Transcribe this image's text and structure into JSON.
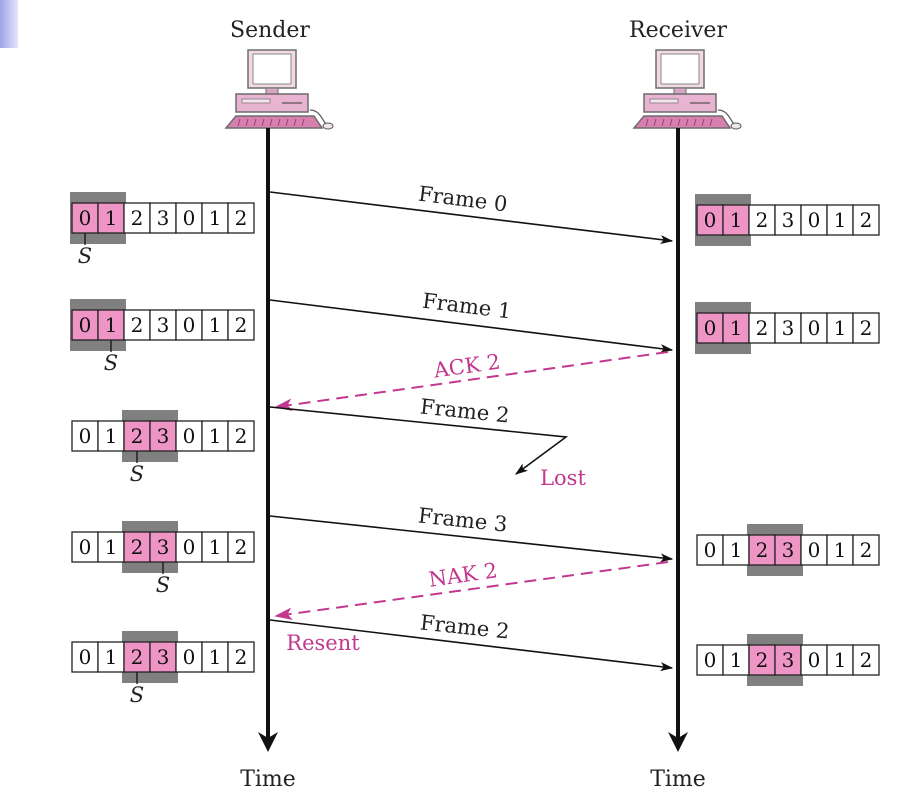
{
  "colors": {
    "window_fill": "#ee95c6",
    "window_frame": "#808080",
    "control_arrow": "#c2388f",
    "line": "#111111",
    "accent_bar": "#a6aaea"
  },
  "actors": {
    "sender": {
      "label": "Sender",
      "time_label": "Time",
      "icon": "computer-icon"
    },
    "receiver": {
      "label": "Receiver",
      "time_label": "Time",
      "icon": "computer-icon"
    }
  },
  "messages": [
    {
      "id": "frame0",
      "label": "Frame 0",
      "direction": "sender-to-receiver",
      "kind": "data"
    },
    {
      "id": "frame1",
      "label": "Frame 1",
      "direction": "sender-to-receiver",
      "kind": "data"
    },
    {
      "id": "ack2",
      "label": "ACK 2",
      "direction": "receiver-to-sender",
      "kind": "control"
    },
    {
      "id": "frame2",
      "label": "Frame 2",
      "direction": "sender-to-receiver",
      "kind": "data",
      "lost": true,
      "lost_label": "Lost"
    },
    {
      "id": "frame3",
      "label": "Frame 3",
      "direction": "sender-to-receiver",
      "kind": "data"
    },
    {
      "id": "nak2",
      "label": "NAK 2",
      "direction": "receiver-to-sender",
      "kind": "control"
    },
    {
      "id": "frame2b",
      "label": "Frame 2",
      "direction": "sender-to-receiver",
      "kind": "data",
      "note": "Resent"
    }
  ],
  "sequence": [
    "0",
    "1",
    "2",
    "3",
    "0",
    "1",
    "2"
  ],
  "sender_windows": [
    {
      "window_start": 0,
      "window_size": 2,
      "pointer_label": "S",
      "pointer_index": 0
    },
    {
      "window_start": 0,
      "window_size": 2,
      "pointer_label": "S",
      "pointer_index": 1
    },
    {
      "window_start": 2,
      "window_size": 2,
      "pointer_label": "S",
      "pointer_index": 2
    },
    {
      "window_start": 2,
      "window_size": 2,
      "pointer_label": "S",
      "pointer_index": 3
    },
    {
      "window_start": 2,
      "window_size": 2,
      "pointer_label": "S",
      "pointer_index": 2
    }
  ],
  "receiver_windows": [
    {
      "window_start": 0,
      "window_size": 2
    },
    {
      "window_start": 0,
      "window_size": 2
    },
    {
      "window_start": 2,
      "window_size": 2
    },
    {
      "window_start": 2,
      "window_size": 2
    }
  ]
}
